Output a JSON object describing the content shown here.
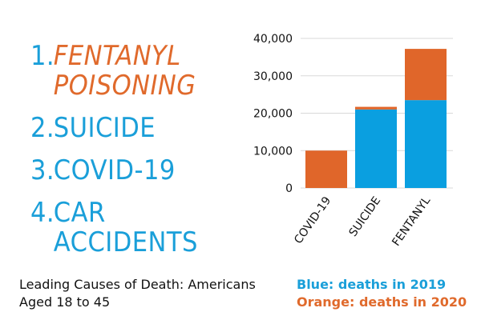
{
  "ranking": {
    "items": [
      {
        "num": "1.",
        "label": "FENTANYL POISONING"
      },
      {
        "num": "2.",
        "label": "SUICIDE"
      },
      {
        "num": "3.",
        "label": "COVID-19"
      },
      {
        "num": "4.",
        "label": "CAR ACCIDENTS"
      }
    ]
  },
  "caption": "Leading Causes of Death: Americans Aged 18 to 45",
  "legend": {
    "blue": "Blue: deaths in 2019",
    "orange": "Orange: deaths in 2020"
  },
  "colors": {
    "blue": "#0a9fe0",
    "orange": "#e0662a",
    "text_blue": "#1a9fd9"
  },
  "chart_data": {
    "type": "bar",
    "stacked": true,
    "categories": [
      "COVID-19",
      "SUICIDE",
      "FENTANYL"
    ],
    "series": [
      {
        "name": "deaths in 2019",
        "color": "#0a9fe0",
        "values": [
          0,
          21000,
          23500
        ]
      },
      {
        "name": "deaths in 2020",
        "color": "#e0662a",
        "values": [
          10000,
          700,
          13700
        ]
      }
    ],
    "ylim": [
      0,
      40000
    ],
    "yticks": [
      "0",
      "10,000",
      "20,000",
      "30,000",
      "40,000"
    ],
    "grid": true,
    "title": "",
    "xlabel": "",
    "ylabel": ""
  }
}
